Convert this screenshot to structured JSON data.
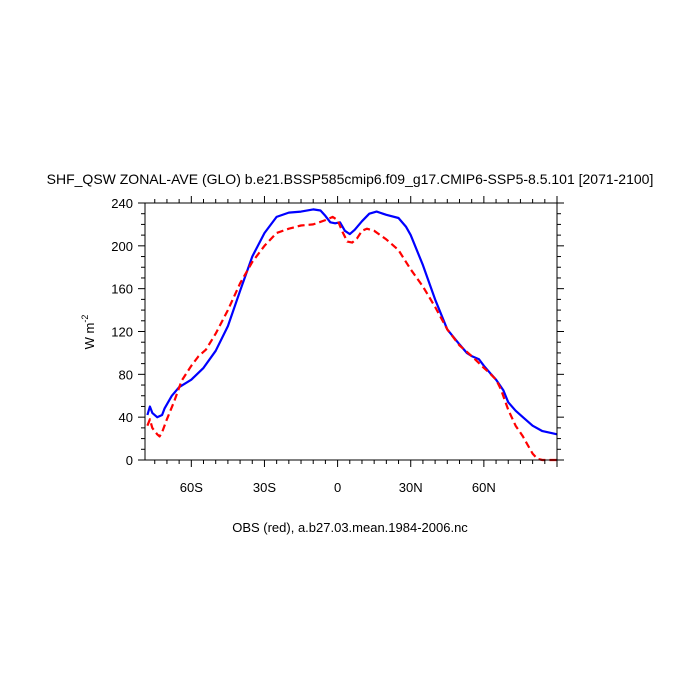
{
  "chart_data": {
    "type": "line",
    "title": "SHF_QSW ZONAL-AVE (GLO) b.e21.BSSP585cmip6.f09_g17.CMIP6-SSP5-8.5.101 [2071-2100]",
    "ylabel": "W m",
    "ylabel_superscript": "-2",
    "caption": "OBS (red), a.b27.03.mean.1984-2006.nc",
    "xlim": [
      -79,
      90
    ],
    "ylim": [
      0,
      240
    ],
    "x_ticks": [
      {
        "value": -60,
        "label": "60S"
      },
      {
        "value": -30,
        "label": "30S"
      },
      {
        "value": 0,
        "label": "0"
      },
      {
        "value": 30,
        "label": "30N"
      },
      {
        "value": 60,
        "label": "60N"
      }
    ],
    "y_ticks": [
      {
        "value": 0,
        "label": "0"
      },
      {
        "value": 40,
        "label": "40"
      },
      {
        "value": 80,
        "label": "80"
      },
      {
        "value": 120,
        "label": "120"
      },
      {
        "value": 160,
        "label": "160"
      },
      {
        "value": 200,
        "label": "200"
      },
      {
        "value": 240,
        "label": "240"
      }
    ],
    "series": [
      {
        "color": "#0000ff",
        "dash": "solid",
        "points": [
          [
            -78,
            42
          ],
          [
            -77,
            50
          ],
          [
            -76,
            44
          ],
          [
            -74,
            40
          ],
          [
            -72,
            42
          ],
          [
            -71,
            48
          ],
          [
            -68,
            60
          ],
          [
            -65,
            68
          ],
          [
            -60,
            75
          ],
          [
            -55,
            86
          ],
          [
            -50,
            102
          ],
          [
            -45,
            125
          ],
          [
            -40,
            158
          ],
          [
            -35,
            190
          ],
          [
            -30,
            212
          ],
          [
            -25,
            227
          ],
          [
            -20,
            231
          ],
          [
            -15,
            232
          ],
          [
            -10,
            234
          ],
          [
            -7,
            233
          ],
          [
            -5,
            228
          ],
          [
            -3,
            222
          ],
          [
            -1,
            221
          ],
          [
            1,
            222
          ],
          [
            3,
            214
          ],
          [
            5,
            211
          ],
          [
            7,
            215
          ],
          [
            10,
            223
          ],
          [
            13,
            230
          ],
          [
            16,
            232
          ],
          [
            20,
            229
          ],
          [
            25,
            226
          ],
          [
            28,
            218
          ],
          [
            30,
            210
          ],
          [
            35,
            182
          ],
          [
            40,
            150
          ],
          [
            45,
            122
          ],
          [
            50,
            108
          ],
          [
            53,
            100
          ],
          [
            55,
            97
          ],
          [
            58,
            94
          ],
          [
            60,
            88
          ],
          [
            63,
            80
          ],
          [
            65,
            75
          ],
          [
            68,
            65
          ],
          [
            70,
            54
          ],
          [
            73,
            46
          ],
          [
            76,
            40
          ],
          [
            80,
            32
          ],
          [
            84,
            27
          ],
          [
            88,
            25
          ],
          [
            90,
            24
          ]
        ]
      },
      {
        "color": "#ff0000",
        "dash": "dashed",
        "points": [
          [
            -78,
            32
          ],
          [
            -77,
            38
          ],
          [
            -76,
            30
          ],
          [
            -74,
            24
          ],
          [
            -73,
            22
          ],
          [
            -72,
            26
          ],
          [
            -70,
            38
          ],
          [
            -67,
            55
          ],
          [
            -64,
            74
          ],
          [
            -60,
            88
          ],
          [
            -57,
            97
          ],
          [
            -54,
            103
          ],
          [
            -50,
            118
          ],
          [
            -45,
            140
          ],
          [
            -40,
            165
          ],
          [
            -35,
            185
          ],
          [
            -30,
            200
          ],
          [
            -25,
            212
          ],
          [
            -20,
            216
          ],
          [
            -15,
            219
          ],
          [
            -10,
            220
          ],
          [
            -5,
            224
          ],
          [
            -2,
            227
          ],
          [
            0,
            224
          ],
          [
            2,
            213
          ],
          [
            4,
            204
          ],
          [
            6,
            203
          ],
          [
            8,
            207
          ],
          [
            10,
            214
          ],
          [
            12,
            216
          ],
          [
            15,
            214
          ],
          [
            20,
            206
          ],
          [
            25,
            196
          ],
          [
            30,
            178
          ],
          [
            35,
            162
          ],
          [
            40,
            143
          ],
          [
            45,
            122
          ],
          [
            50,
            107
          ],
          [
            55,
            97
          ],
          [
            60,
            86
          ],
          [
            62,
            82
          ],
          [
            65,
            75
          ],
          [
            67,
            66
          ],
          [
            70,
            47
          ],
          [
            73,
            32
          ],
          [
            76,
            22
          ],
          [
            78,
            14
          ],
          [
            80,
            6
          ],
          [
            82,
            1
          ],
          [
            84,
            0
          ],
          [
            90,
            0
          ]
        ]
      }
    ]
  }
}
